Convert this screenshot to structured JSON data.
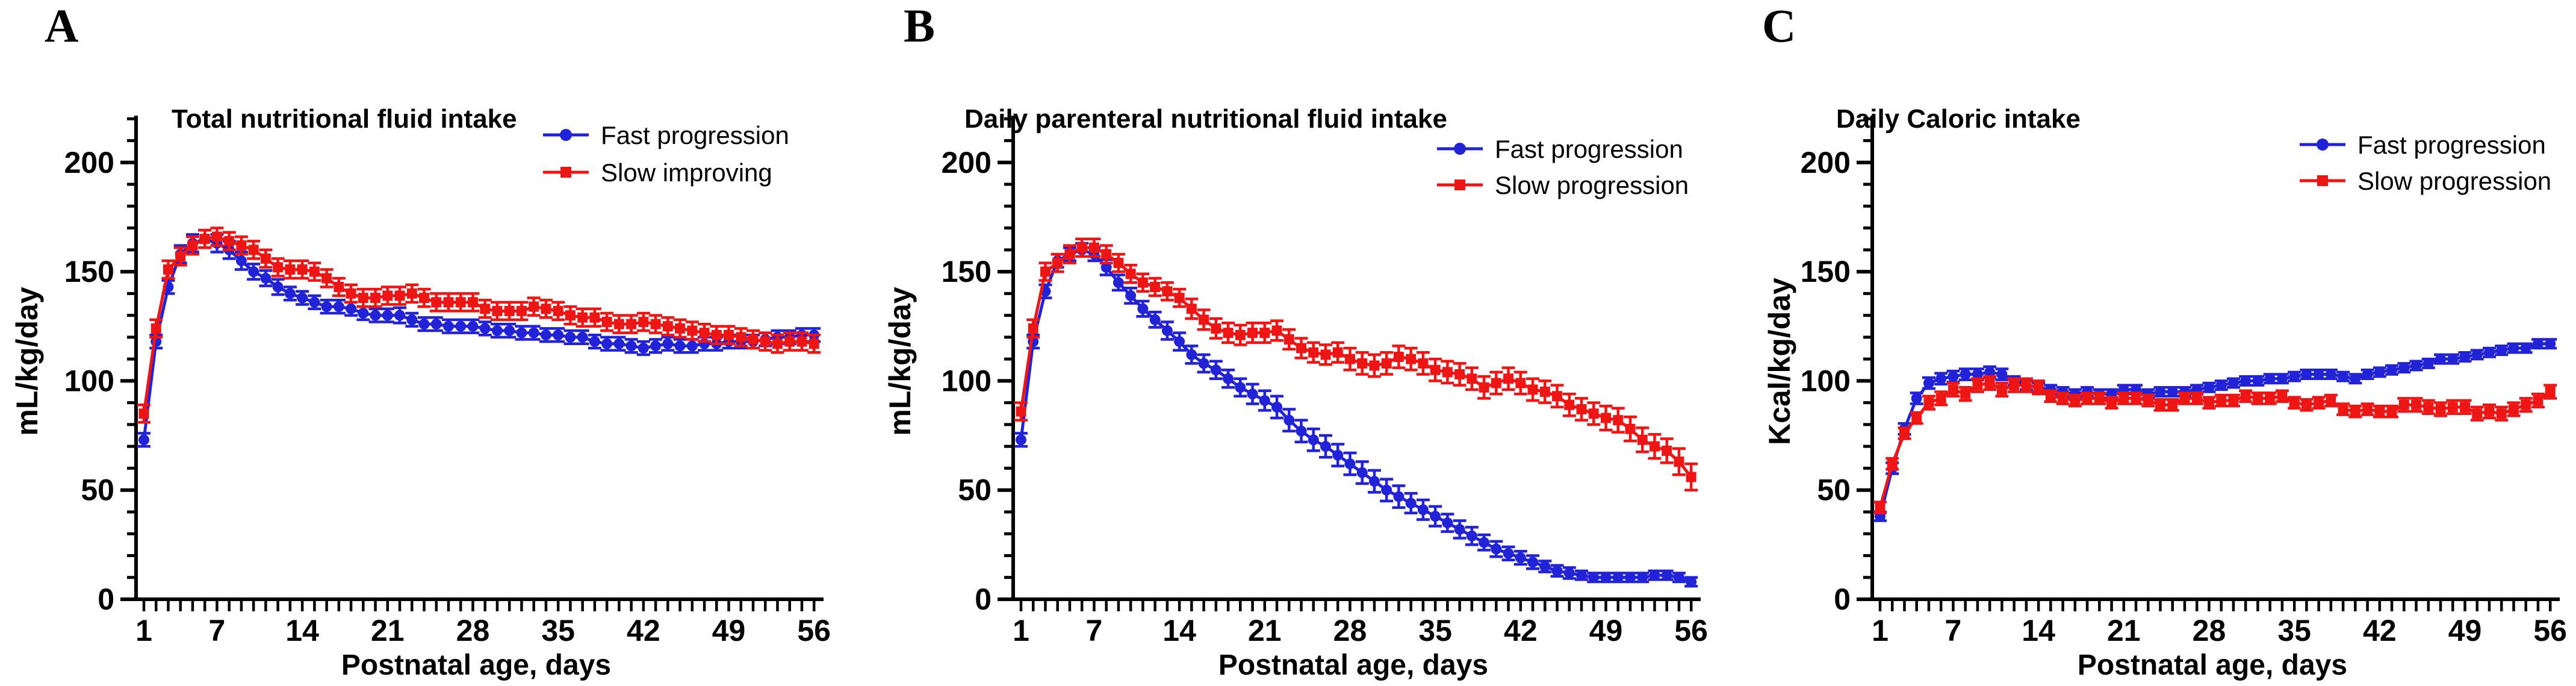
{
  "figure": {
    "background": "#ffffff",
    "axis_color": "#000000",
    "blue": "#2222d6",
    "red": "#ee1515"
  },
  "days": [
    1,
    2,
    3,
    4,
    5,
    6,
    7,
    8,
    9,
    10,
    11,
    12,
    13,
    14,
    15,
    16,
    17,
    18,
    19,
    20,
    21,
    22,
    23,
    24,
    25,
    26,
    27,
    28,
    29,
    30,
    31,
    32,
    33,
    34,
    35,
    36,
    37,
    38,
    39,
    40,
    41,
    42,
    43,
    44,
    45,
    46,
    47,
    48,
    49,
    50,
    51,
    52,
    53,
    54,
    55,
    56
  ],
  "chart_data": [
    {
      "type": "line",
      "panel_label": "A",
      "title": "Total nutritional fluid intake",
      "xlabel": "Postnatal age, days",
      "ylabel": "mL/kg/day",
      "xlim": [
        0.36,
        56.2
      ],
      "ylim": [
        0,
        222
      ],
      "yticks": [
        0,
        50,
        100,
        150,
        200
      ],
      "y_minor_step": 10,
      "xticks_labeled": [
        1,
        7,
        14,
        21,
        28,
        35,
        42,
        49,
        56
      ],
      "grid": false,
      "legend_position": "top-right",
      "series": [
        {
          "name": "Fast progression",
          "color": "#2222d6",
          "marker": "circle",
          "values": [
            73,
            118,
            143,
            158,
            163,
            165,
            163,
            160,
            155,
            150,
            147,
            143,
            140,
            138,
            136,
            134,
            134,
            133,
            131,
            130,
            130,
            130,
            128,
            126,
            126,
            125,
            125,
            125,
            124,
            123,
            123,
            122,
            122,
            121,
            121,
            120,
            120,
            118,
            117,
            117,
            116,
            115,
            116,
            117,
            116,
            116,
            117,
            117,
            118,
            118,
            118,
            119,
            120,
            120,
            121,
            121
          ],
          "sem": [
            3,
            3,
            3,
            4,
            4,
            4,
            4,
            4,
            4,
            3.5,
            3.5,
            3.5,
            3,
            3,
            3,
            3,
            3,
            3,
            3,
            3,
            3,
            3.5,
            3,
            3,
            3,
            3,
            3,
            3,
            3,
            3,
            3,
            3,
            3,
            3,
            3,
            3,
            3,
            3,
            3,
            3,
            3,
            3,
            3,
            3,
            3,
            3,
            3,
            3,
            3,
            3,
            3,
            3,
            3,
            3,
            3,
            3
          ]
        },
        {
          "name": "Slow improving",
          "color": "#ee1515",
          "marker": "square",
          "values": [
            85,
            124,
            151,
            157,
            162,
            165,
            166,
            164,
            162,
            160,
            156,
            152,
            151,
            151,
            150,
            147,
            143,
            140,
            138,
            138,
            139,
            139,
            140,
            138,
            136,
            136,
            136,
            136,
            133,
            132,
            132,
            132,
            134,
            133,
            132,
            130,
            129,
            129,
            127,
            126,
            126,
            127,
            126,
            125,
            124,
            123,
            122,
            121,
            121,
            120,
            119,
            118,
            117,
            118,
            118,
            117
          ],
          "sem": [
            4,
            4,
            4,
            4,
            4,
            4,
            4,
            4,
            4,
            4,
            4,
            4,
            4,
            4,
            4,
            4,
            4,
            4,
            4,
            4,
            4,
            4,
            4,
            4,
            4,
            4,
            4,
            4,
            4,
            4,
            4,
            4,
            4,
            4,
            4,
            4,
            4,
            4,
            4,
            4,
            4,
            4,
            4,
            4,
            4,
            4,
            4,
            4,
            4,
            4,
            4,
            4,
            4,
            4,
            4,
            4
          ]
        }
      ]
    },
    {
      "type": "line",
      "panel_label": "B",
      "title": "Daily parenteral nutritional fluid intake",
      "xlabel": "Postnatal age, days",
      "ylabel": "mL/kg/day",
      "xlim": [
        0.36,
        56.2
      ],
      "ylim": [
        0,
        222
      ],
      "yticks": [
        0,
        50,
        100,
        150,
        200
      ],
      "y_minor_step": 10,
      "xticks_labeled": [
        1,
        7,
        14,
        21,
        28,
        35,
        42,
        49,
        56
      ],
      "grid": false,
      "legend_position": "top-right",
      "series": [
        {
          "name": "Fast progression",
          "color": "#2222d6",
          "marker": "circle",
          "values": [
            73,
            118,
            141,
            155,
            158,
            160,
            158,
            152,
            145,
            139,
            133,
            128,
            123,
            118,
            112,
            108,
            105,
            101,
            97,
            94,
            91,
            88,
            82,
            77,
            73,
            70,
            66,
            62,
            58,
            54,
            50,
            47,
            44,
            41,
            38,
            35,
            32,
            29,
            26,
            23,
            21,
            19,
            17,
            15,
            13,
            12,
            11,
            10,
            10,
            10,
            10,
            10,
            11,
            11,
            10,
            8
          ],
          "sem": [
            3,
            3,
            3,
            3,
            3,
            3,
            3,
            3.5,
            3.5,
            3.5,
            3.5,
            3.5,
            4,
            4,
            4,
            4,
            4,
            4,
            4,
            4.5,
            4.5,
            5,
            5,
            5,
            5,
            5,
            5,
            5,
            5,
            5,
            5,
            5,
            4.5,
            4.5,
            4.5,
            4,
            4,
            4,
            3.5,
            3.5,
            3,
            3,
            3,
            2.5,
            2.5,
            2.5,
            2,
            2,
            2,
            2,
            2,
            2,
            2,
            2,
            2,
            2
          ]
        },
        {
          "name": "Slow progression",
          "color": "#ee1515",
          "marker": "square",
          "values": [
            86,
            124,
            150,
            154,
            158,
            161,
            161,
            158,
            154,
            149,
            145,
            143,
            141,
            138,
            133,
            128,
            124,
            122,
            121,
            122,
            122,
            123,
            119,
            115,
            113,
            112,
            113,
            110,
            108,
            107,
            108,
            111,
            110,
            108,
            105,
            104,
            103,
            101,
            97,
            99,
            101,
            99,
            96,
            95,
            93,
            89,
            87,
            85,
            83,
            82,
            78,
            73,
            70,
            68,
            63,
            56
          ],
          "sem": [
            4,
            4,
            4,
            4,
            4,
            4,
            4,
            4,
            4,
            4,
            4,
            4,
            4,
            4,
            4.5,
            4.5,
            4.5,
            4.5,
            4.5,
            4.5,
            4.5,
            4.5,
            4.5,
            4.5,
            4.5,
            4.5,
            4.5,
            5,
            5,
            5,
            5,
            5,
            5,
            5,
            5,
            5,
            5,
            5,
            5,
            5,
            5,
            5,
            5,
            5,
            5,
            5,
            5,
            5,
            5.5,
            5.5,
            5.5,
            5.5,
            5.5,
            5.5,
            6,
            6
          ]
        }
      ]
    },
    {
      "type": "line",
      "panel_label": "C",
      "title": "Daily Caloric intake",
      "xlabel": "Postnatal age, days",
      "ylabel": "Kcal/kg/day",
      "xlim": [
        0.36,
        56.2
      ],
      "ylim": [
        0,
        222
      ],
      "yticks": [
        0,
        50,
        100,
        150,
        200
      ],
      "y_minor_step": 10,
      "xticks_labeled": [
        1,
        7,
        14,
        21,
        28,
        35,
        42,
        49,
        56
      ],
      "grid": false,
      "legend_position": "top-right",
      "series": [
        {
          "name": "Fast progression",
          "color": "#2222d6",
          "marker": "circle",
          "values": [
            38,
            60,
            78,
            92,
            99,
            101,
            102,
            103,
            103,
            104,
            103,
            100,
            98,
            97,
            96,
            95,
            94,
            95,
            94,
            94,
            96,
            96,
            94,
            95,
            95,
            95,
            96,
            97,
            98,
            99,
            100,
            100,
            101,
            101,
            102,
            103,
            103,
            103,
            102,
            101,
            103,
            104,
            105,
            106,
            107,
            108,
            110,
            110,
            111,
            112,
            113,
            114,
            115,
            115,
            117,
            117
          ],
          "sem": [
            2,
            2.5,
            2.5,
            2.5,
            2.5,
            2.5,
            2.5,
            2.5,
            2.5,
            2.5,
            2.5,
            2,
            2,
            2,
            2,
            2,
            2,
            2,
            2,
            2,
            2,
            2,
            2,
            2,
            2,
            2,
            2,
            2,
            2,
            2,
            2,
            2,
            2,
            2,
            2,
            2,
            2,
            2,
            2,
            2,
            2,
            2,
            2,
            2,
            2,
            2,
            2,
            2,
            2,
            2,
            2,
            2,
            2,
            2,
            2,
            2
          ]
        },
        {
          "name": "Slow progression",
          "color": "#ee1515",
          "marker": "square",
          "values": [
            42,
            62,
            76,
            83,
            90,
            92,
            96,
            94,
            98,
            99,
            96,
            98,
            98,
            97,
            93,
            92,
            91,
            92,
            92,
            90,
            92,
            92,
            91,
            89,
            89,
            92,
            92,
            90,
            91,
            91,
            93,
            92,
            92,
            93,
            90,
            89,
            90,
            91,
            87,
            86,
            87,
            86,
            86,
            89,
            89,
            88,
            87,
            88,
            88,
            85,
            86,
            85,
            87,
            89,
            91,
            95
          ],
          "sem": [
            2.5,
            2.5,
            2.5,
            2.5,
            3,
            3,
            3,
            3,
            3,
            3,
            3,
            3,
            3,
            3,
            2.5,
            2.5,
            2.5,
            2.5,
            2.5,
            2.5,
            2.5,
            2.5,
            2.5,
            2.5,
            2.5,
            2.5,
            2.5,
            2.5,
            2.5,
            2.5,
            2.5,
            2.5,
            2.5,
            2.5,
            2.5,
            2.5,
            2.5,
            2.5,
            2.5,
            2.5,
            2.5,
            2.5,
            2.5,
            3,
            3,
            3,
            3,
            3,
            3,
            3,
            3,
            3,
            3,
            3,
            3,
            3
          ]
        }
      ]
    }
  ]
}
